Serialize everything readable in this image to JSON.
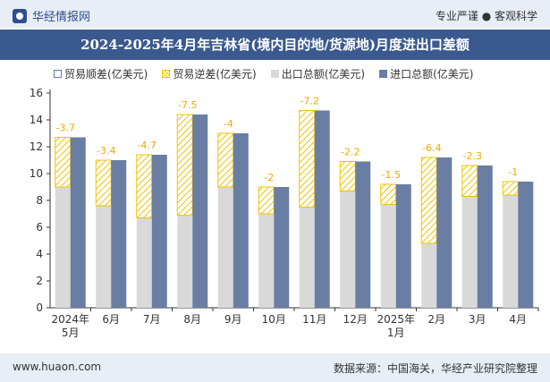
{
  "header": {
    "brand": "华经情报网",
    "right_text": "专业严谨 ● 客观科学"
  },
  "footer": {
    "website": "www.huaon.com",
    "source": "数据来源：中国海关，华经产业研究院整理"
  },
  "colors": {
    "title_bar": "#3a5a8f",
    "export_bar": "#d9d9d9",
    "import_bar": "#6a7ea3",
    "deficit_hatch": "#f2c200",
    "label_color": "#f2a800"
  },
  "chart_data": {
    "type": "bar",
    "title": "2024-2025年4月年吉林省(境内目的地/货源地)月度进出口差额",
    "legend": [
      "贸易顺差(亿美元)",
      "贸易逆差(亿美元)",
      "出口总额(亿美元)",
      "进口总额(亿美元)"
    ],
    "legend_position": "top",
    "categories": [
      "2024年\n5月",
      "6月",
      "7月",
      "8月",
      "9月",
      "10月",
      "11月",
      "12月",
      "2025年\n1月",
      "2月",
      "3月",
      "4月"
    ],
    "series": [
      {
        "name": "出口总额(亿美元)",
        "values": [
          9.0,
          7.6,
          6.7,
          6.9,
          9.0,
          7.0,
          7.5,
          8.7,
          7.7,
          4.8,
          8.3,
          8.4
        ]
      },
      {
        "name": "进口总额(亿美元)",
        "values": [
          12.7,
          11.0,
          11.4,
          14.4,
          13.0,
          9.0,
          14.7,
          10.9,
          9.2,
          11.2,
          10.6,
          9.4
        ]
      },
      {
        "name": "贸易逆差(亿美元)",
        "values": [
          -3.7,
          -3.4,
          -4.7,
          -7.5,
          -4,
          -2,
          -7.2,
          -2.2,
          -1.5,
          -6.4,
          -2.3,
          -1
        ]
      }
    ],
    "ylim": [
      0,
      16
    ],
    "yticks": [
      0,
      2,
      4,
      6,
      8,
      10,
      12,
      14,
      16
    ],
    "grid": false
  }
}
